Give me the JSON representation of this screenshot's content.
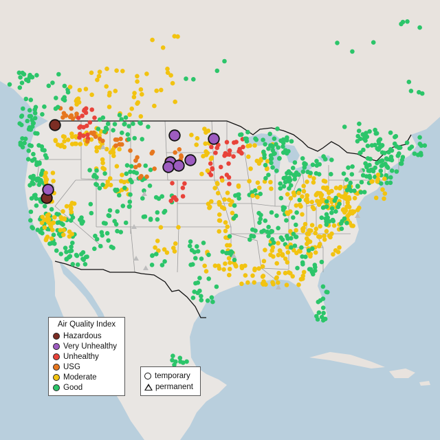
{
  "map": {
    "colors": {
      "ocean": "#b9cfdd",
      "land": "#e8e3de",
      "us_land": "#e9e6e3",
      "state_border": "#9a9a9a",
      "national_border": "#111111",
      "lakes": "#b9cfdd"
    }
  },
  "aqi_legend": {
    "title": "Air Quality Index",
    "items": [
      {
        "label": "Hazardous",
        "color": "#7b2d24"
      },
      {
        "label": "Very Unhealthy",
        "color": "#9d5cc0"
      },
      {
        "label": "Unhealthy",
        "color": "#e8433a"
      },
      {
        "label": "USG",
        "color": "#e6771f"
      },
      {
        "label": "Moderate",
        "color": "#f2c311"
      },
      {
        "label": "Good",
        "color": "#2cc56a"
      }
    ]
  },
  "type_legend": {
    "items": [
      {
        "label": "temporary",
        "shape": "circle"
      },
      {
        "label": "permanent",
        "shape": "triangle"
      }
    ]
  },
  "monitors_summary": {
    "hazardous_sites": 3,
    "very_unhealthy_sites": 7,
    "unavailable_color": "#bdbdbd"
  }
}
